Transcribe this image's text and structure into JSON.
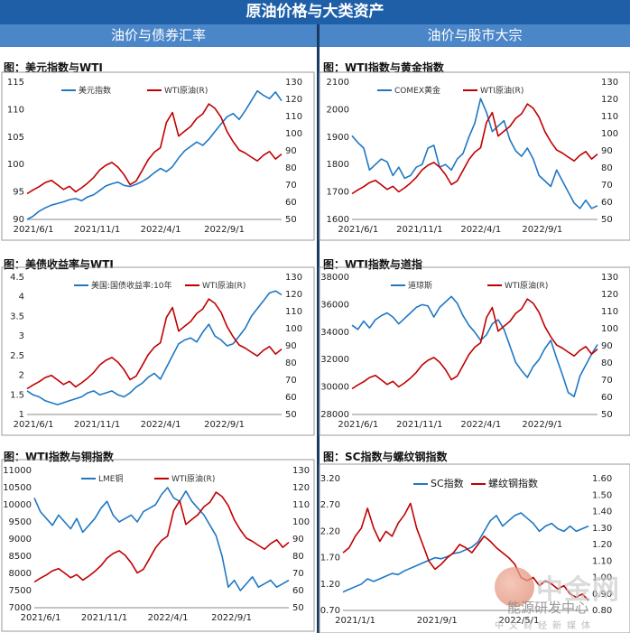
{
  "header": {
    "title": "原油价格与大类资产",
    "left_section": "油价与债券汇率",
    "right_section": "油价与股市大宗"
  },
  "colors": {
    "blue": "#1f77c4",
    "red": "#c00000",
    "header": "#1f5fa8",
    "subheader": "#4a86c8"
  },
  "watermark": {
    "logo_text": "中金网",
    "sub_text": "能源研发中心",
    "small_text": "中文财经新媒体"
  },
  "chart_data": [
    {
      "type": "line",
      "title": "图：美元指数与WTI",
      "xticks": [
        "2021/6/1",
        "2021/11/1",
        "2022/4/1",
        "2022/9/1"
      ],
      "left_axis": {
        "ylim": [
          90,
          115
        ],
        "ticks": [
          "90",
          "95",
          "100",
          "105",
          "110",
          "115"
        ]
      },
      "right_axis": {
        "ylim": [
          50,
          130
        ],
        "ticks": [
          "50",
          "60",
          "70",
          "80",
          "90",
          "100",
          "110",
          "120",
          "130"
        ]
      },
      "series": [
        {
          "name": "美元指数",
          "axis": "left",
          "color": "#1f77c4",
          "values": [
            90,
            90.6,
            91.5,
            92.1,
            92.6,
            92.9,
            93.2,
            93.6,
            93.8,
            93.4,
            94.1,
            94.5,
            95.3,
            96.1,
            96.5,
            96.8,
            96.2,
            96,
            96.4,
            96.9,
            97.6,
            98.5,
            99.3,
            98.7,
            99.6,
            101.2,
            102.5,
            103.3,
            104.1,
            103.5,
            104.6,
            106,
            107.4,
            108.7,
            109.3,
            108.2,
            109.8,
            111.6,
            113.4,
            112.6,
            112,
            113.2,
            111.6
          ]
        },
        {
          "name": "WTI原油(R)",
          "axis": "right",
          "color": "#c00000",
          "values": [
            65,
            67.2,
            69.1,
            71.5,
            72.8,
            70.2,
            67.5,
            69.3,
            66.1,
            68.4,
            71.2,
            74.5,
            78.9,
            81.6,
            83.2,
            80.5,
            76.1,
            70.3,
            72.4,
            78.6,
            84.9,
            89.2,
            91.8,
            106.5,
            112.3,
            98.6,
            101.4,
            104.2,
            108.9,
            111.5,
            117.3,
            114.8,
            109.6,
            101.2,
            95.3,
            90.5,
            88.7,
            86.3,
            84.1,
            87.4,
            89.6,
            85.2,
            88.1
          ]
        }
      ]
    },
    {
      "type": "line",
      "title": "图：WTI指数与黄金指数",
      "xticks": [
        "2021/6/1",
        "2021/11/1",
        "2022/4/1",
        "2022/9/1"
      ],
      "left_axis": {
        "ylim": [
          1600,
          2100
        ],
        "ticks": [
          "1600",
          "1700",
          "1800",
          "1900",
          "2000",
          "2100"
        ]
      },
      "right_axis": {
        "ylim": [
          50,
          130
        ],
        "ticks": [
          "50",
          "60",
          "70",
          "80",
          "90",
          "100",
          "110",
          "120",
          "130"
        ]
      },
      "series": [
        {
          "name": "COMEX黄金",
          "axis": "left",
          "color": "#1f77c4",
          "values": [
            1905,
            1880,
            1860,
            1780,
            1800,
            1820,
            1810,
            1760,
            1790,
            1750,
            1760,
            1790,
            1800,
            1860,
            1870,
            1790,
            1800,
            1780,
            1820,
            1840,
            1900,
            1950,
            2040,
            1990,
            1920,
            1940,
            1960,
            1890,
            1850,
            1830,
            1860,
            1820,
            1760,
            1740,
            1720,
            1780,
            1740,
            1700,
            1660,
            1640,
            1670,
            1640,
            1650
          ]
        },
        {
          "name": "WTI原油(R)",
          "axis": "right",
          "color": "#c00000",
          "values": [
            65,
            67.2,
            69.1,
            71.5,
            72.8,
            70.2,
            67.5,
            69.3,
            66.1,
            68.4,
            71.2,
            74.5,
            78.9,
            81.6,
            83.2,
            80.5,
            76.1,
            70.3,
            72.4,
            78.6,
            84.9,
            89.2,
            91.8,
            106.5,
            112.3,
            98.6,
            101.4,
            104.2,
            108.9,
            111.5,
            117.3,
            114.8,
            109.6,
            101.2,
            95.3,
            90.5,
            88.7,
            86.3,
            84.1,
            87.4,
            89.6,
            85.2,
            88.1
          ]
        }
      ]
    },
    {
      "type": "line",
      "title": "图：美债收益率与WTI",
      "xticks": [
        "2021/6/1",
        "2021/11/1",
        "2022/4/1",
        "2022/9/1"
      ],
      "left_axis": {
        "ylim": [
          1,
          4.5
        ],
        "ticks": [
          "1",
          "1.5",
          "2",
          "2.5",
          "3",
          "3.5",
          "4",
          "4.5"
        ]
      },
      "right_axis": {
        "ylim": [
          50,
          130
        ],
        "ticks": [
          "50",
          "60",
          "70",
          "80",
          "90",
          "100",
          "110",
          "120",
          "130"
        ]
      },
      "series": [
        {
          "name": "美国:国债收益率:10年",
          "axis": "left",
          "color": "#1f77c4",
          "values": [
            1.6,
            1.5,
            1.45,
            1.35,
            1.3,
            1.25,
            1.3,
            1.35,
            1.4,
            1.45,
            1.55,
            1.6,
            1.5,
            1.55,
            1.6,
            1.5,
            1.45,
            1.55,
            1.7,
            1.8,
            1.95,
            2.05,
            1.9,
            2.2,
            2.5,
            2.8,
            2.9,
            2.95,
            2.85,
            3.1,
            3.3,
            3.0,
            2.9,
            2.75,
            2.8,
            3.0,
            3.2,
            3.5,
            3.7,
            3.9,
            4.1,
            4.15,
            4.05
          ]
        },
        {
          "name": "WTI原油(R)",
          "axis": "right",
          "color": "#c00000",
          "values": [
            65,
            67.2,
            69.1,
            71.5,
            72.8,
            70.2,
            67.5,
            69.3,
            66.1,
            68.4,
            71.2,
            74.5,
            78.9,
            81.6,
            83.2,
            80.5,
            76.1,
            70.3,
            72.4,
            78.6,
            84.9,
            89.2,
            91.8,
            106.5,
            112.3,
            98.6,
            101.4,
            104.2,
            108.9,
            111.5,
            117.3,
            114.8,
            109.6,
            101.2,
            95.3,
            90.5,
            88.7,
            86.3,
            84.1,
            87.4,
            89.6,
            85.2,
            88.1
          ]
        }
      ]
    },
    {
      "type": "line",
      "title": "图：WTI指数与道指",
      "xticks": [
        "2021/6/1",
        "2021/11/1",
        "2022/4/1",
        "2022/9/1"
      ],
      "left_axis": {
        "ylim": [
          28000,
          38000
        ],
        "ticks": [
          "28000",
          "30000",
          "32000",
          "34000",
          "36000",
          "38000"
        ]
      },
      "right_axis": {
        "ylim": [
          50,
          130
        ],
        "ticks": [
          "50",
          "60",
          "70",
          "80",
          "90",
          "100",
          "110",
          "120",
          "130"
        ]
      },
      "series": [
        {
          "name": "道琼斯",
          "axis": "left",
          "color": "#1f77c4",
          "values": [
            34500,
            34200,
            34800,
            34300,
            34900,
            35200,
            35400,
            35100,
            34600,
            35000,
            35400,
            35800,
            36000,
            35900,
            35100,
            35800,
            36200,
            36600,
            36100,
            35200,
            34500,
            34000,
            33400,
            33800,
            34600,
            34900,
            34200,
            33000,
            31800,
            31200,
            30700,
            31500,
            32000,
            32800,
            33400,
            32100,
            30900,
            29600,
            29300,
            30800,
            31600,
            32400,
            33100
          ]
        },
        {
          "name": "WTI原油(R)",
          "axis": "right",
          "color": "#c00000",
          "values": [
            65,
            67.2,
            69.1,
            71.5,
            72.8,
            70.2,
            67.5,
            69.3,
            66.1,
            68.4,
            71.2,
            74.5,
            78.9,
            81.6,
            83.2,
            80.5,
            76.1,
            70.3,
            72.4,
            78.6,
            84.9,
            89.2,
            91.8,
            106.5,
            112.3,
            98.6,
            101.4,
            104.2,
            108.9,
            111.5,
            117.3,
            114.8,
            109.6,
            101.2,
            95.3,
            90.5,
            88.7,
            86.3,
            84.1,
            87.4,
            89.6,
            85.2,
            88.1
          ]
        }
      ]
    },
    {
      "type": "line",
      "title": "图：WTI指数与铜指数",
      "xticks": [
        "2021/6/1",
        "2021/11/1",
        "2022/4/1",
        "2022/9/1"
      ],
      "left_axis": {
        "ylim": [
          7000,
          11000
        ],
        "ticks": [
          "7000",
          "7500",
          "8000",
          "8500",
          "9000",
          "9500",
          "10000",
          "10500",
          "11000"
        ]
      },
      "right_axis": {
        "ylim": [
          50,
          130
        ],
        "ticks": [
          "50",
          "60",
          "70",
          "80",
          "90",
          "100",
          "110",
          "120",
          "130"
        ]
      },
      "series": [
        {
          "name": "LME铜",
          "axis": "left",
          "color": "#1f77c4",
          "values": [
            10200,
            9800,
            9600,
            9400,
            9700,
            9500,
            9300,
            9600,
            9200,
            9400,
            9600,
            9900,
            10100,
            9700,
            9500,
            9600,
            9700,
            9500,
            9800,
            9900,
            10000,
            10300,
            10500,
            10200,
            10100,
            10400,
            10100,
            9900,
            9700,
            9400,
            9100,
            8500,
            7600,
            7800,
            7500,
            7700,
            7900,
            7600,
            7700,
            7800,
            7600,
            7700,
            7800
          ]
        },
        {
          "name": "WTI原油(R)",
          "axis": "right",
          "color": "#c00000",
          "values": [
            65,
            67.2,
            69.1,
            71.5,
            72.8,
            70.2,
            67.5,
            69.3,
            66.1,
            68.4,
            71.2,
            74.5,
            78.9,
            81.6,
            83.2,
            80.5,
            76.1,
            70.3,
            72.4,
            78.6,
            84.9,
            89.2,
            91.8,
            106.5,
            112.3,
            98.6,
            101.4,
            104.2,
            108.9,
            111.5,
            117.3,
            114.8,
            109.6,
            101.2,
            95.3,
            90.5,
            88.7,
            86.3,
            84.1,
            87.4,
            89.6,
            85.2,
            88.1
          ]
        }
      ]
    },
    {
      "type": "line",
      "title": "图：SC指数与螺纹钢指数",
      "xticks": [
        "2021/1/1",
        "2021/9/1",
        "2022/5/1"
      ],
      "left_axis": {
        "ylim": [
          0.7,
          3.2
        ],
        "ticks": [
          "0.70",
          "1.20",
          "1.70",
          "2.20",
          "2.70",
          "3.20"
        ]
      },
      "right_axis": {
        "ylim": [
          0.8,
          1.6
        ],
        "ticks": [
          "0.80",
          "0.90",
          "1.00",
          "1.10",
          "1.20",
          "1.30",
          "1.40",
          "1.50",
          "1.60"
        ]
      },
      "series": [
        {
          "name": "SC指数",
          "axis": "left",
          "color": "#1f77c4",
          "values": [
            1.05,
            1.1,
            1.15,
            1.2,
            1.3,
            1.25,
            1.3,
            1.35,
            1.4,
            1.38,
            1.45,
            1.5,
            1.55,
            1.6,
            1.65,
            1.7,
            1.68,
            1.72,
            1.78,
            1.8,
            1.85,
            1.9,
            2.0,
            2.2,
            2.4,
            2.5,
            2.3,
            2.4,
            2.5,
            2.55,
            2.45,
            2.35,
            2.2,
            2.3,
            2.35,
            2.25,
            2.2,
            2.3,
            2.2,
            2.25,
            2.3
          ]
        },
        {
          "name": "螺纹钢指数",
          "axis": "right",
          "color": "#c00000",
          "values": [
            1.15,
            1.18,
            1.25,
            1.3,
            1.42,
            1.3,
            1.22,
            1.28,
            1.25,
            1.33,
            1.38,
            1.45,
            1.3,
            1.2,
            1.1,
            1.05,
            1.08,
            1.12,
            1.15,
            1.2,
            1.18,
            1.15,
            1.2,
            1.25,
            1.22,
            1.18,
            1.15,
            1.12,
            1.08,
            1.0,
            0.98,
            1.0,
            0.95,
            0.98,
            0.96,
            0.93,
            0.95,
            0.9,
            0.88,
            0.9,
            0.86
          ]
        }
      ]
    }
  ]
}
